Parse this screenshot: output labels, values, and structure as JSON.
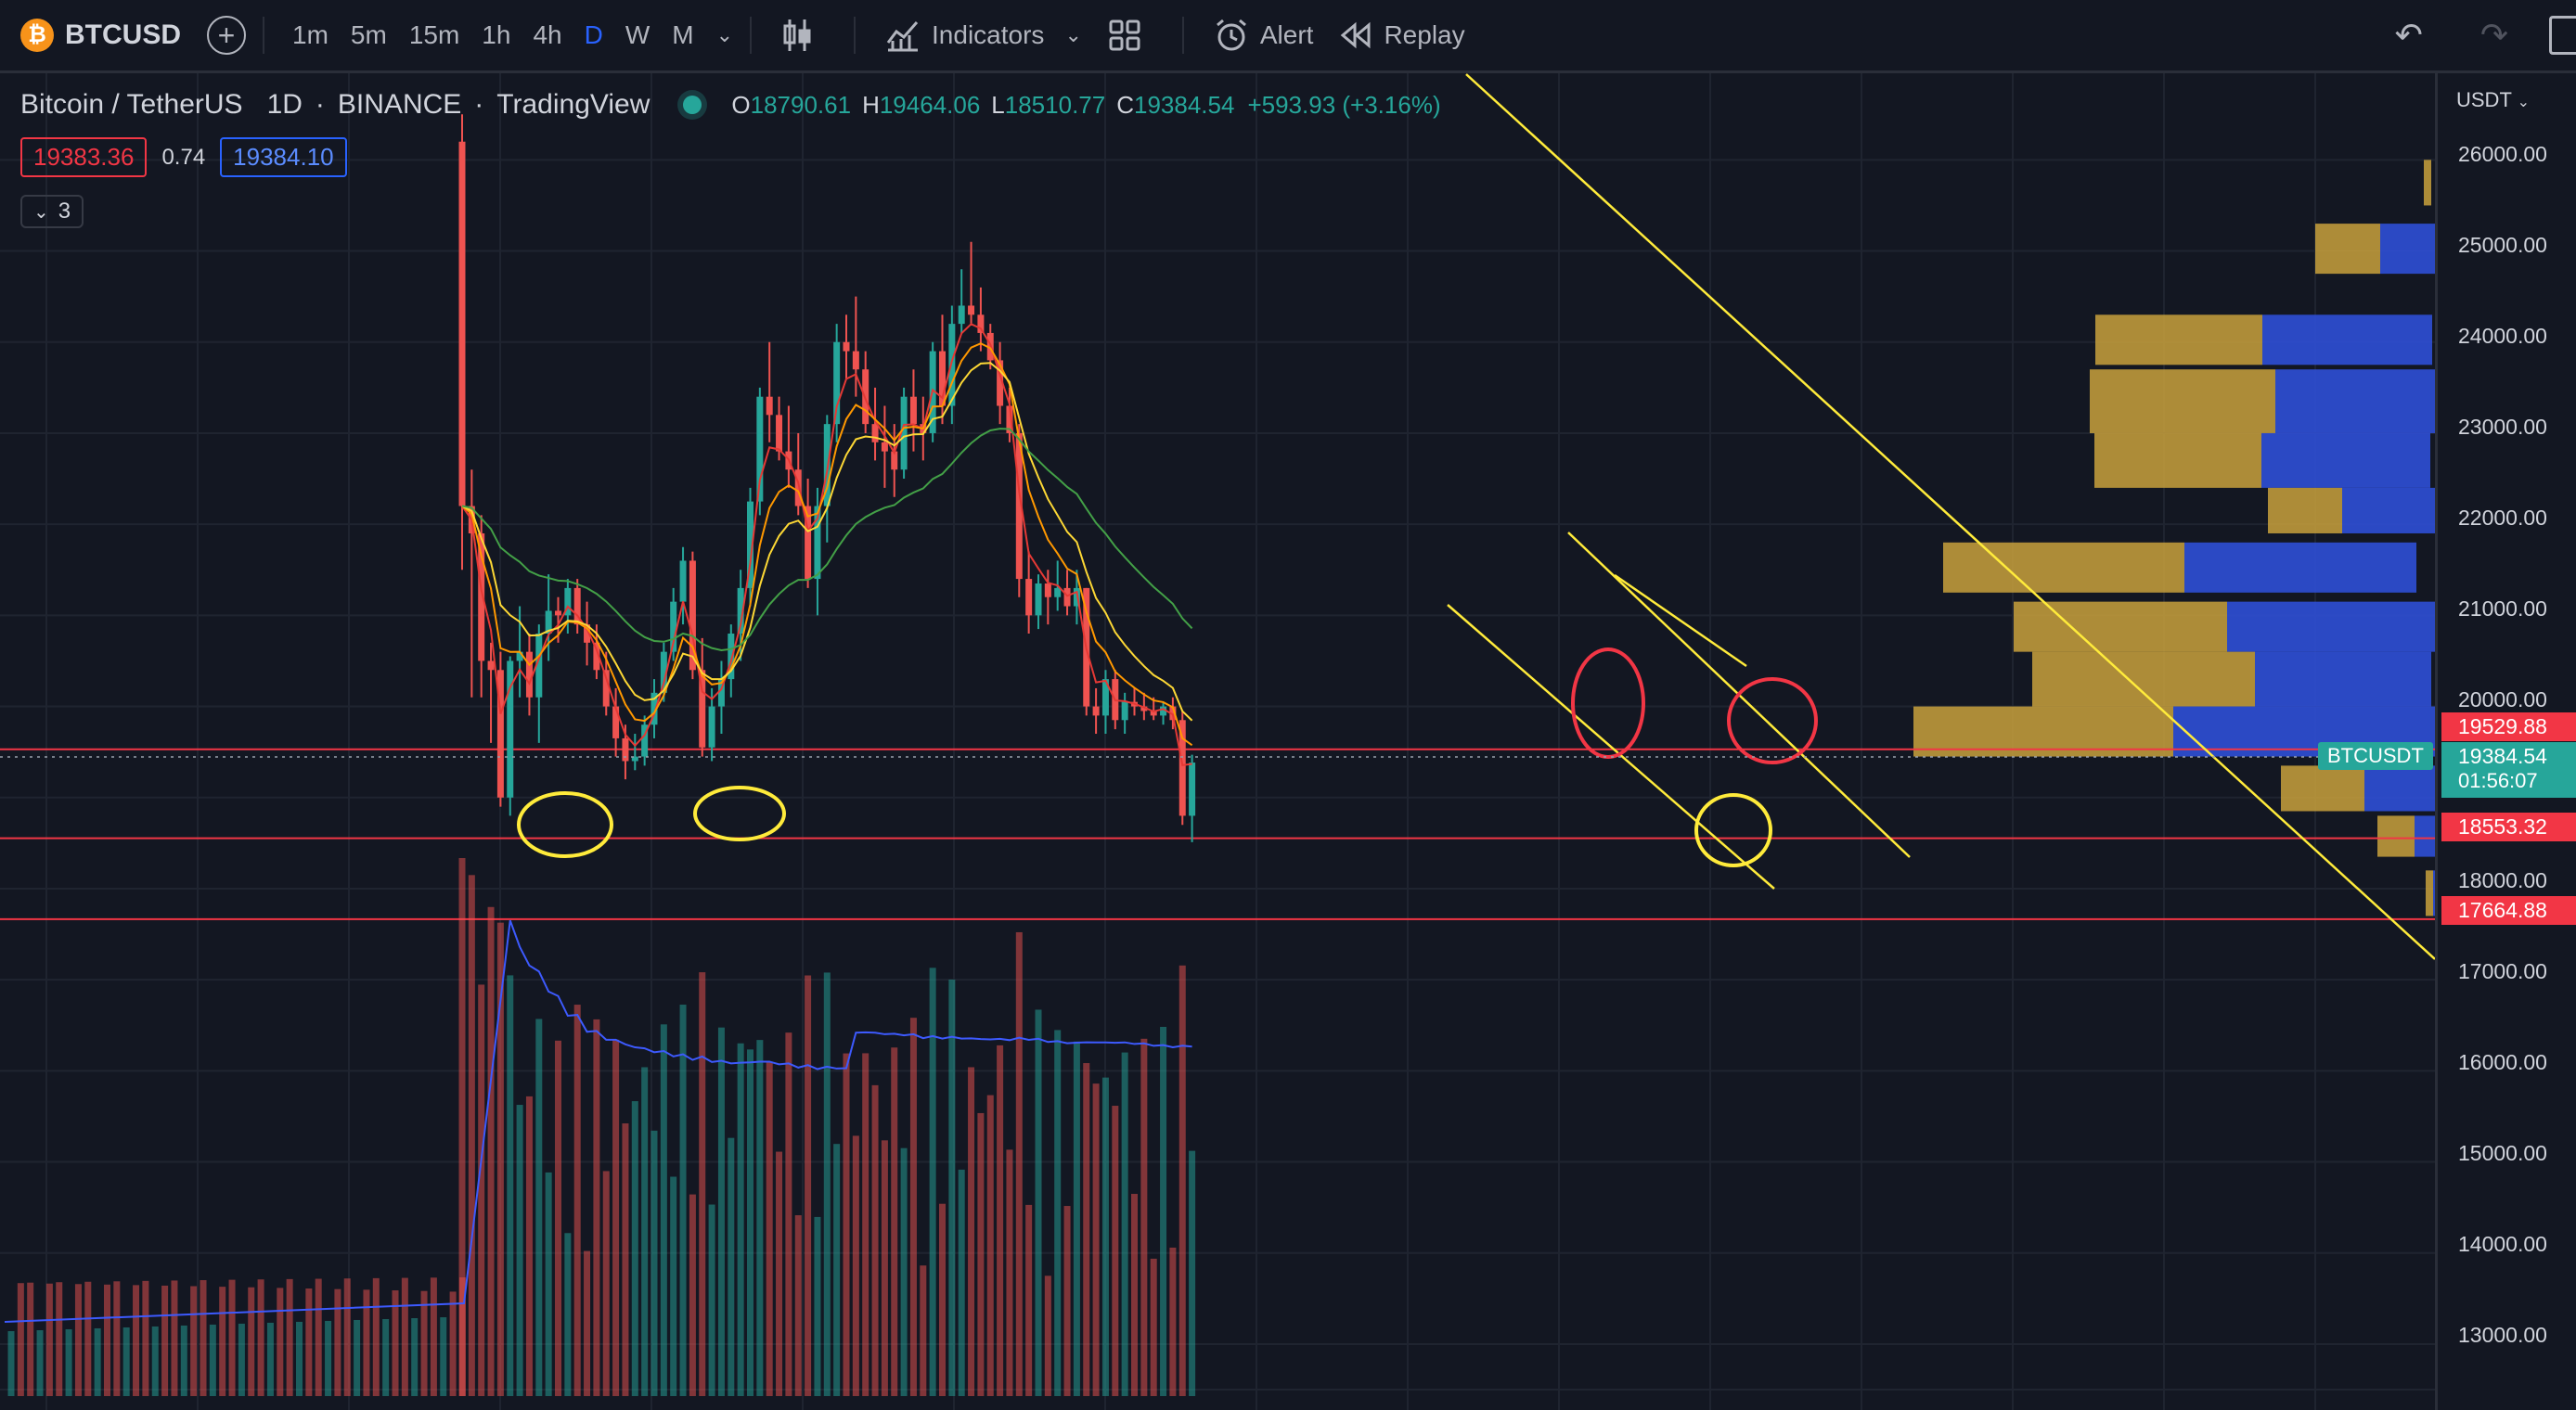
{
  "toolbar": {
    "symbol": "BTCUSD",
    "timeframes": [
      "1m",
      "5m",
      "15m",
      "1h",
      "4h",
      "D",
      "W",
      "M"
    ],
    "active_timeframe": "D",
    "indicators_label": "Indicators",
    "alert_label": "Alert",
    "replay_label": "Replay"
  },
  "legend": {
    "pair": "Bitcoin / TetherUS",
    "interval": "1D",
    "exchange": "BINANCE",
    "source": "TradingView",
    "open_label": "O",
    "open": "18790.61",
    "high_label": "H",
    "high": "19464.06",
    "low_label": "L",
    "low": "18510.77",
    "close_label": "C",
    "close": "19384.54",
    "change": "+593.93 (+3.16%)",
    "bid": "19383.36",
    "spread": "0.74",
    "ask": "19384.10",
    "indicator_count": "3"
  },
  "price_axis": {
    "currency": "USDT",
    "ticks": [
      "26000.00",
      "25000.00",
      "24000.00",
      "23000.00",
      "22000.00",
      "21000.00",
      "20000.00",
      "18000.00",
      "17000.00",
      "16000.00",
      "15000.00",
      "14000.00",
      "13000.00"
    ],
    "badge_upper_resistance": "19529.88",
    "badge_current_price": "19384.54",
    "badge_countdown": "01:56:07",
    "badge_support_1": "18553.32",
    "badge_support_2": "17664.88",
    "symbol_tag": "BTCUSDT"
  },
  "colors": {
    "background": "#131722",
    "up": "#26a69a",
    "down": "#ef5350",
    "accent": "#2962ff",
    "annotation_yellow": "#ffeb3b",
    "annotation_red": "#f23645",
    "vp_gold": "#c9a13c",
    "vp_blue": "#2f4fd6"
  },
  "chart_data": {
    "type": "candlestick",
    "timeframe": "1D",
    "ylim": [
      12500,
      26500
    ],
    "horizontal_levels": [
      19529.88,
      18553.32,
      17664.88
    ],
    "candles": [
      [
        26200,
        26500,
        21500,
        22200
      ],
      [
        22200,
        22600,
        20100,
        21900
      ],
      [
        21900,
        22100,
        20100,
        20500
      ],
      [
        20500,
        20700,
        19600,
        20400
      ],
      [
        20400,
        20600,
        18900,
        19000
      ],
      [
        19000,
        20550,
        18800,
        20500
      ],
      [
        20500,
        21100,
        20100,
        20600
      ],
      [
        20600,
        20800,
        19900,
        20100
      ],
      [
        20100,
        20900,
        19600,
        20800
      ],
      [
        20800,
        21450,
        20500,
        21050
      ],
      [
        21050,
        21200,
        20700,
        21000
      ],
      [
        21000,
        21400,
        20800,
        21300
      ],
      [
        21300,
        21400,
        20800,
        20900
      ],
      [
        20900,
        21150,
        20450,
        20700
      ],
      [
        20700,
        20900,
        20300,
        20400
      ],
      [
        20400,
        20600,
        19900,
        20000
      ],
      [
        20000,
        20200,
        19450,
        19650
      ],
      [
        19650,
        19800,
        19200,
        19400
      ],
      [
        19400,
        19700,
        19300,
        19450
      ],
      [
        19450,
        19900,
        19350,
        19800
      ],
      [
        19800,
        20300,
        19650,
        20150
      ],
      [
        20150,
        20700,
        20050,
        20600
      ],
      [
        20600,
        21300,
        20500,
        21150
      ],
      [
        21150,
        21750,
        20900,
        21600
      ],
      [
        21600,
        21700,
        20300,
        20400
      ],
      [
        20400,
        20750,
        19450,
        19550
      ],
      [
        19550,
        20200,
        19400,
        20000
      ],
      [
        20000,
        20500,
        19700,
        20300
      ],
      [
        20300,
        20900,
        20100,
        20800
      ],
      [
        20800,
        21500,
        20500,
        21300
      ],
      [
        21300,
        22400,
        21100,
        22250
      ],
      [
        22250,
        23500,
        22100,
        23400
      ],
      [
        23400,
        24000,
        22900,
        23200
      ],
      [
        23200,
        23400,
        22700,
        22800
      ],
      [
        22800,
        23300,
        22400,
        22600
      ],
      [
        22600,
        23000,
        22100,
        22200
      ],
      [
        22200,
        22500,
        21300,
        21400
      ],
      [
        21400,
        22400,
        21000,
        22200
      ],
      [
        22200,
        23200,
        21800,
        23100
      ],
      [
        23100,
        24200,
        22900,
        24000
      ],
      [
        24000,
        24300,
        23600,
        23900
      ],
      [
        23900,
        24500,
        23400,
        23700
      ],
      [
        23700,
        23900,
        23000,
        23100
      ],
      [
        23100,
        23500,
        22700,
        22900
      ],
      [
        22900,
        23300,
        22400,
        22800
      ],
      [
        22800,
        23100,
        22300,
        22600
      ],
      [
        22600,
        23500,
        22500,
        23400
      ],
      [
        23400,
        23700,
        22800,
        23100
      ],
      [
        23100,
        23400,
        22700,
        23000
      ],
      [
        23000,
        24000,
        22900,
        23900
      ],
      [
        23900,
        24300,
        23100,
        23300
      ],
      [
        23300,
        24400,
        23100,
        24200
      ],
      [
        24200,
        24800,
        24100,
        24400
      ],
      [
        24400,
        25100,
        24200,
        24300
      ],
      [
        24300,
        24600,
        23900,
        24100
      ],
      [
        24100,
        24200,
        23700,
        23800
      ],
      [
        23800,
        24000,
        23100,
        23300
      ],
      [
        23300,
        23500,
        22900,
        23000
      ],
      [
        23000,
        23100,
        21200,
        21400
      ],
      [
        21400,
        21700,
        20800,
        21000
      ],
      [
        21000,
        21450,
        20850,
        21350
      ],
      [
        21350,
        21500,
        20900,
        21200
      ],
      [
        21200,
        21600,
        21050,
        21300
      ],
      [
        21300,
        21500,
        21000,
        21100
      ],
      [
        21100,
        21500,
        20900,
        21300
      ],
      [
        21300,
        21300,
        19900,
        20000
      ],
      [
        20000,
        20200,
        19700,
        19900
      ],
      [
        19900,
        20400,
        19700,
        20300
      ],
      [
        20300,
        20400,
        19750,
        19850
      ],
      [
        19850,
        20150,
        19700,
        20050
      ],
      [
        20050,
        20200,
        19900,
        20000
      ],
      [
        20000,
        20150,
        19850,
        19950
      ],
      [
        19950,
        20100,
        19850,
        19900
      ],
      [
        19900,
        20050,
        19800,
        20000
      ],
      [
        20000,
        20100,
        19750,
        19850
      ],
      [
        19850,
        19950,
        18700,
        18800
      ],
      [
        18800,
        19470,
        18510,
        19384
      ]
    ]
  }
}
